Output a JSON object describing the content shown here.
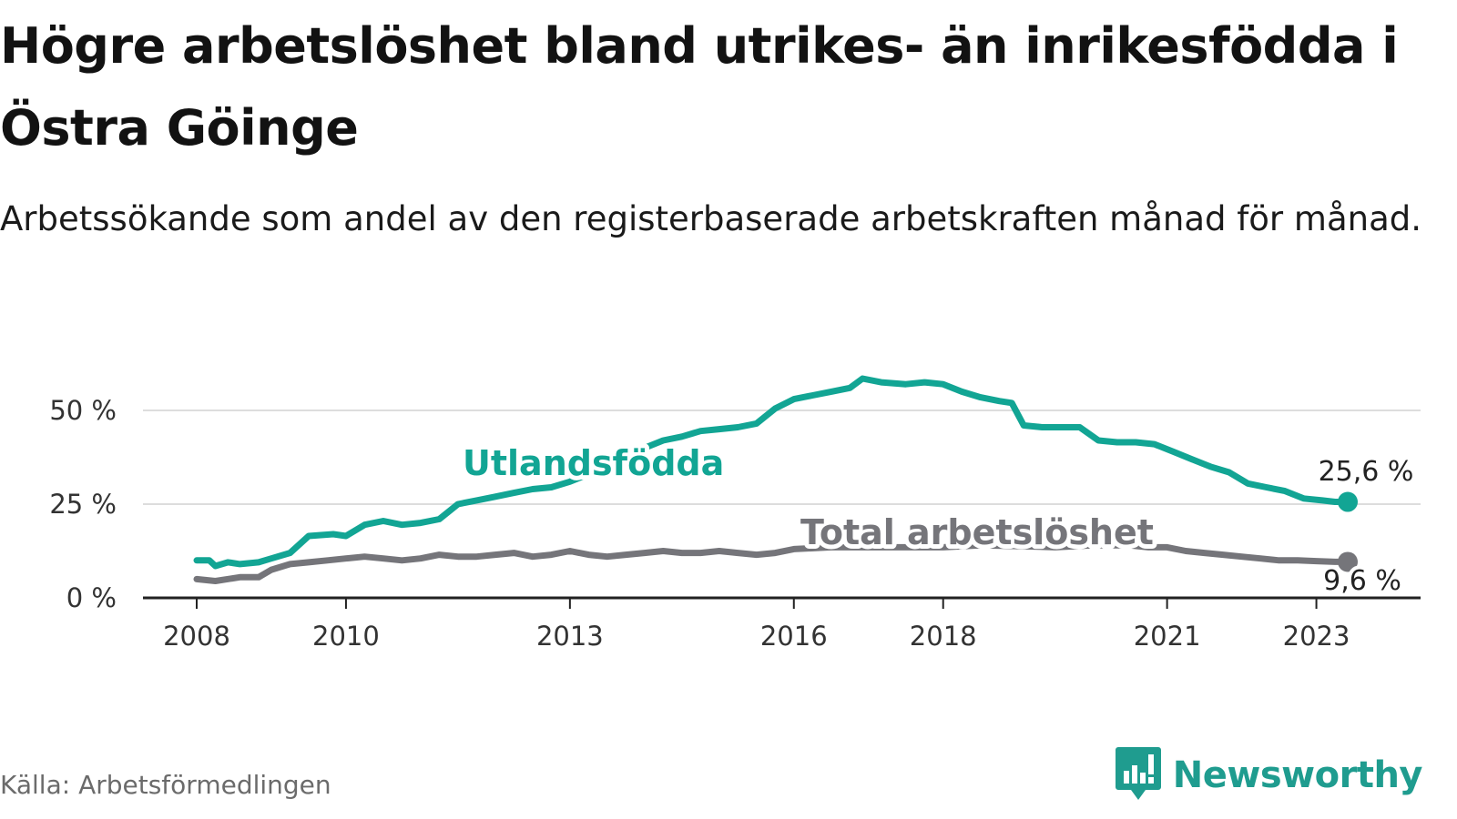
{
  "header": {
    "title": "Högre arbetslöshet bland utrikes- än inrikesfödda i Östra Göinge",
    "subtitle": "Arbetssökande som andel av den registerbaserade arbetskraften månad för månad."
  },
  "footer": {
    "source": "Källa: Arbetsförmedlingen",
    "brand": "Newsworthy",
    "brand_icon": "newsworthy-logo-icon"
  },
  "colors": {
    "utlandsfodda": "#12a594",
    "total": "#75757a",
    "grid": "#dddddd",
    "axis": "#222222"
  },
  "chart_data": {
    "type": "line",
    "x_range": [
      2008.0,
      2023.42
    ],
    "ylim": [
      0,
      60
    ],
    "yticks": [
      0,
      25,
      50
    ],
    "ytick_labels": [
      "0 %",
      "25 %",
      "50 %"
    ],
    "xticks": [
      2008,
      2010,
      2013,
      2016,
      2018,
      2021,
      2023
    ],
    "xtick_labels": [
      "2008",
      "2010",
      "2013",
      "2016",
      "2018",
      "2021",
      "2023"
    ],
    "grid": true,
    "legend": "inline labels",
    "series": [
      {
        "name": "Utlandsfödda",
        "color": "#12a594",
        "end_label": "25,6 %",
        "points": [
          [
            2008.0,
            10.0
          ],
          [
            2008.17,
            10.0
          ],
          [
            2008.25,
            8.5
          ],
          [
            2008.42,
            9.5
          ],
          [
            2008.58,
            9.0
          ],
          [
            2008.83,
            9.5
          ],
          [
            2009.0,
            10.5
          ],
          [
            2009.25,
            12.0
          ],
          [
            2009.5,
            16.5
          ],
          [
            2009.83,
            17.0
          ],
          [
            2010.0,
            16.5
          ],
          [
            2010.25,
            19.5
          ],
          [
            2010.5,
            20.5
          ],
          [
            2010.75,
            19.5
          ],
          [
            2011.0,
            20.0
          ],
          [
            2011.25,
            21.0
          ],
          [
            2011.5,
            25.0
          ],
          [
            2011.75,
            26.0
          ],
          [
            2012.0,
            27.0
          ],
          [
            2012.25,
            28.0
          ],
          [
            2012.5,
            29.0
          ],
          [
            2012.75,
            29.5
          ],
          [
            2013.0,
            31.0
          ],
          [
            2013.25,
            33.0
          ],
          [
            2013.5,
            35.0
          ],
          [
            2013.75,
            37.5
          ],
          [
            2014.0,
            40.0
          ],
          [
            2014.25,
            42.0
          ],
          [
            2014.5,
            43.0
          ],
          [
            2014.75,
            44.5
          ],
          [
            2015.0,
            45.0
          ],
          [
            2015.25,
            45.5
          ],
          [
            2015.5,
            46.5
          ],
          [
            2015.75,
            50.5
          ],
          [
            2016.0,
            53.0
          ],
          [
            2016.25,
            54.0
          ],
          [
            2016.5,
            55.0
          ],
          [
            2016.75,
            56.0
          ],
          [
            2016.92,
            58.5
          ],
          [
            2017.17,
            57.5
          ],
          [
            2017.5,
            57.0
          ],
          [
            2017.75,
            57.5
          ],
          [
            2018.0,
            57.0
          ],
          [
            2018.25,
            55.0
          ],
          [
            2018.5,
            53.5
          ],
          [
            2018.75,
            52.5
          ],
          [
            2018.92,
            52.0
          ],
          [
            2019.08,
            46.0
          ],
          [
            2019.33,
            45.5
          ],
          [
            2019.58,
            45.5
          ],
          [
            2019.83,
            45.5
          ],
          [
            2020.08,
            42.0
          ],
          [
            2020.33,
            41.5
          ],
          [
            2020.58,
            41.5
          ],
          [
            2020.83,
            41.0
          ],
          [
            2021.08,
            39.0
          ],
          [
            2021.33,
            37.0
          ],
          [
            2021.58,
            35.0
          ],
          [
            2021.83,
            33.5
          ],
          [
            2022.08,
            30.5
          ],
          [
            2022.33,
            29.5
          ],
          [
            2022.58,
            28.5
          ],
          [
            2022.83,
            26.5
          ],
          [
            2023.08,
            26.0
          ],
          [
            2023.25,
            25.6
          ],
          [
            2023.42,
            25.6
          ]
        ]
      },
      {
        "name": "Total arbetslöshet",
        "color": "#75757a",
        "end_label": "9,6 %",
        "points": [
          [
            2008.0,
            5.0
          ],
          [
            2008.25,
            4.5
          ],
          [
            2008.58,
            5.5
          ],
          [
            2008.83,
            5.5
          ],
          [
            2009.0,
            7.5
          ],
          [
            2009.25,
            9.0
          ],
          [
            2009.5,
            9.5
          ],
          [
            2009.75,
            10.0
          ],
          [
            2010.0,
            10.5
          ],
          [
            2010.25,
            11.0
          ],
          [
            2010.5,
            10.5
          ],
          [
            2010.75,
            10.0
          ],
          [
            2011.0,
            10.5
          ],
          [
            2011.25,
            11.5
          ],
          [
            2011.5,
            11.0
          ],
          [
            2011.75,
            11.0
          ],
          [
            2012.0,
            11.5
          ],
          [
            2012.25,
            12.0
          ],
          [
            2012.5,
            11.0
          ],
          [
            2012.75,
            11.5
          ],
          [
            2013.0,
            12.5
          ],
          [
            2013.25,
            11.5
          ],
          [
            2013.5,
            11.0
          ],
          [
            2013.75,
            11.5
          ],
          [
            2014.0,
            12.0
          ],
          [
            2014.25,
            12.5
          ],
          [
            2014.5,
            12.0
          ],
          [
            2014.75,
            12.0
          ],
          [
            2015.0,
            12.5
          ],
          [
            2015.25,
            12.0
          ],
          [
            2015.5,
            11.5
          ],
          [
            2015.75,
            12.0
          ],
          [
            2016.0,
            13.0
          ],
          [
            2016.5,
            13.5
          ],
          [
            2017.0,
            13.5
          ],
          [
            2017.5,
            13.5
          ],
          [
            2018.0,
            13.5
          ],
          [
            2018.5,
            14.0
          ],
          [
            2019.0,
            13.8
          ],
          [
            2019.5,
            13.5
          ],
          [
            2020.0,
            14.0
          ],
          [
            2020.5,
            14.0
          ],
          [
            2020.75,
            13.5
          ],
          [
            2021.0,
            13.5
          ],
          [
            2021.25,
            12.5
          ],
          [
            2021.5,
            12.0
          ],
          [
            2021.75,
            11.5
          ],
          [
            2022.0,
            11.0
          ],
          [
            2022.25,
            10.5
          ],
          [
            2022.5,
            10.0
          ],
          [
            2022.75,
            10.0
          ],
          [
            2023.0,
            9.8
          ],
          [
            2023.25,
            9.6
          ],
          [
            2023.42,
            9.6
          ]
        ]
      }
    ]
  }
}
